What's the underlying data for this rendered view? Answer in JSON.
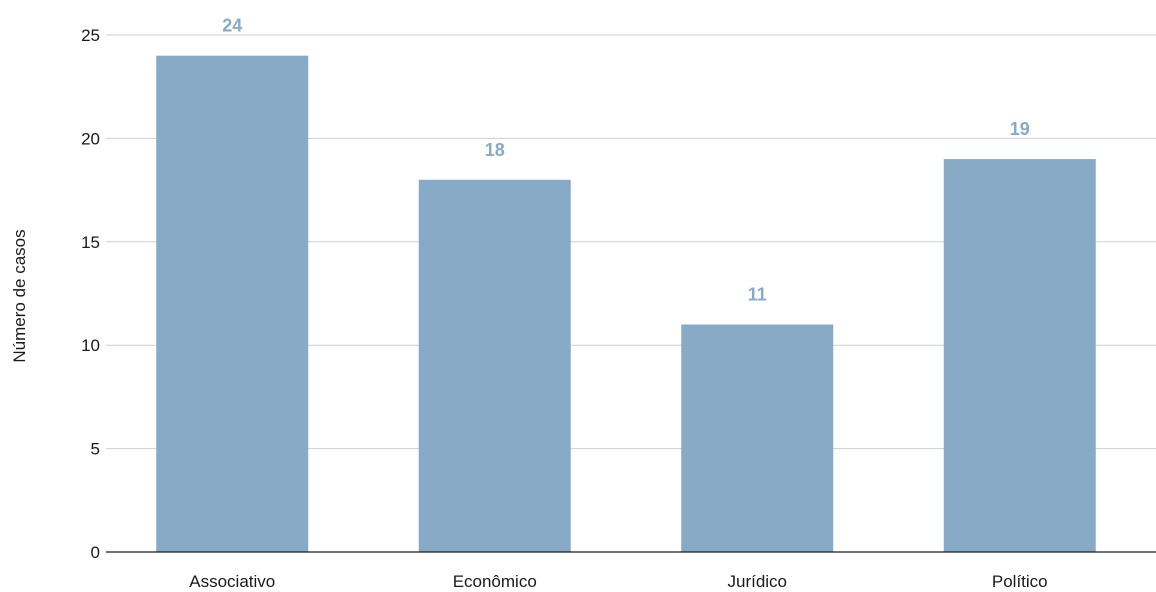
{
  "chart_data": {
    "type": "bar",
    "title": "",
    "xlabel": "",
    "ylabel": "Número de casos",
    "categories": [
      "Associativo",
      "Econômico",
      "Jurídico",
      "Político"
    ],
    "values": [
      24,
      18,
      11,
      19
    ],
    "ylim": [
      0,
      25
    ],
    "yticks": [
      0,
      5,
      10,
      15,
      20,
      25
    ],
    "grid": true,
    "legend": "none",
    "data_labels": true,
    "colors": {
      "bar": "#87abc7",
      "value_label": "#87abc7",
      "grid": "#cfcfcf",
      "axis": "#1a1a1a"
    }
  }
}
